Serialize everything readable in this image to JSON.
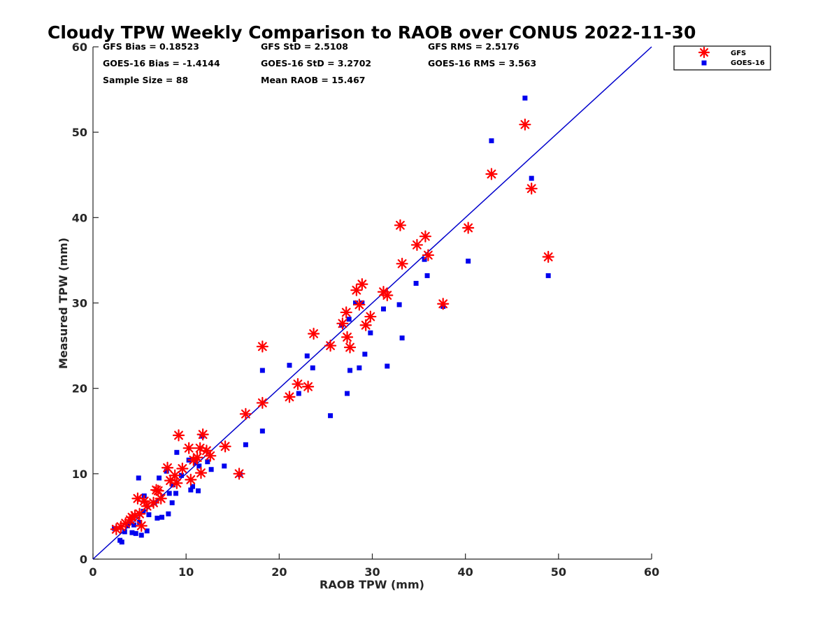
{
  "chart_data": {
    "type": "scatter",
    "title": "Cloudy TPW Weekly Comparison to RAOB over CONUS 2022-11-30",
    "xlabel": "RAOB TPW (mm)",
    "ylabel": "Measured TPW (mm)",
    "xlim": [
      0,
      60
    ],
    "ylim": [
      0,
      60
    ],
    "xticks": [
      "0",
      "10",
      "20",
      "30",
      "40",
      "50",
      "60"
    ],
    "yticks": [
      "0",
      "10",
      "20",
      "30",
      "40",
      "50",
      "60"
    ],
    "grid": false,
    "legend_position": "outside-top-right",
    "stats": {
      "gfs_bias": "GFS Bias = 0.18523",
      "goes_bias": "GOES-16 Bias = -1.4144",
      "sample_size": "Sample Size = 88",
      "gfs_std": "GFS StD = 2.5108",
      "goes_std": "GOES-16 StD = 3.2702",
      "mean_raob": "Mean RAOB = 15.467",
      "gfs_rms": "GFS RMS = 2.5176",
      "goes_rms": "GOES-16 RMS = 3.563"
    },
    "reference_line": {
      "x": [
        0,
        60
      ],
      "y": [
        0,
        60
      ],
      "color": "#0000cc"
    },
    "series": [
      {
        "name": "GFS",
        "marker": "asterisk",
        "color": "#ff0000",
        "points": [
          [
            2.5,
            3.5
          ],
          [
            3.0,
            3.8
          ],
          [
            3.5,
            4.2
          ],
          [
            4.0,
            4.6
          ],
          [
            4.2,
            4.9
          ],
          [
            4.5,
            5.1
          ],
          [
            5.0,
            5.3
          ],
          [
            4.8,
            7.1
          ],
          [
            5.5,
            6.8
          ],
          [
            5.2,
            3.9
          ],
          [
            5.8,
            6.2
          ],
          [
            6.5,
            6.6
          ],
          [
            6.8,
            8.1
          ],
          [
            7.0,
            8.0
          ],
          [
            7.3,
            7.1
          ],
          [
            8.0,
            10.7
          ],
          [
            8.3,
            9.2
          ],
          [
            8.8,
            9.8
          ],
          [
            9.2,
            14.5
          ],
          [
            9.6,
            10.6
          ],
          [
            9.0,
            8.9
          ],
          [
            10.3,
            13.0
          ],
          [
            10.5,
            9.3
          ],
          [
            10.8,
            11.6
          ],
          [
            11.2,
            11.9
          ],
          [
            11.5,
            13.0
          ],
          [
            11.6,
            10.1
          ],
          [
            11.8,
            14.6
          ],
          [
            12.2,
            12.7
          ],
          [
            12.6,
            12.1
          ],
          [
            14.2,
            13.2
          ],
          [
            15.7,
            10.0
          ],
          [
            16.4,
            17.0
          ],
          [
            18.2,
            18.3
          ],
          [
            18.2,
            24.9
          ],
          [
            21.1,
            19.0
          ],
          [
            22.0,
            20.5
          ],
          [
            23.1,
            20.2
          ],
          [
            23.7,
            26.4
          ],
          [
            25.5,
            25.0
          ],
          [
            26.8,
            27.6
          ],
          [
            27.2,
            28.9
          ],
          [
            27.3,
            26.0
          ],
          [
            27.6,
            24.8
          ],
          [
            28.3,
            31.5
          ],
          [
            28.6,
            29.8
          ],
          [
            28.9,
            32.2
          ],
          [
            29.3,
            27.4
          ],
          [
            29.8,
            28.4
          ],
          [
            31.2,
            31.3
          ],
          [
            31.6,
            30.9
          ],
          [
            33.0,
            39.1
          ],
          [
            33.2,
            34.6
          ],
          [
            34.8,
            36.8
          ],
          [
            35.7,
            37.8
          ],
          [
            36.0,
            35.6
          ],
          [
            37.6,
            29.9
          ],
          [
            40.3,
            38.8
          ],
          [
            42.8,
            45.1
          ],
          [
            46.4,
            50.9
          ],
          [
            47.1,
            43.4
          ],
          [
            48.9,
            35.4
          ]
        ]
      },
      {
        "name": "GOES-16",
        "marker": "square",
        "color": "#0000ee",
        "points": [
          [
            2.3,
            3.6
          ],
          [
            2.9,
            2.2
          ],
          [
            3.1,
            2.0
          ],
          [
            3.4,
            3.2
          ],
          [
            3.7,
            3.9
          ],
          [
            4.0,
            4.4
          ],
          [
            4.2,
            3.1
          ],
          [
            4.4,
            4.0
          ],
          [
            4.6,
            3.0
          ],
          [
            4.9,
            9.5
          ],
          [
            5.0,
            4.3
          ],
          [
            5.2,
            2.8
          ],
          [
            5.4,
            5.6
          ],
          [
            5.5,
            7.4
          ],
          [
            5.8,
            3.3
          ],
          [
            6.0,
            5.2
          ],
          [
            6.6,
            6.6
          ],
          [
            6.9,
            4.8
          ],
          [
            7.1,
            9.5
          ],
          [
            7.4,
            4.9
          ],
          [
            7.9,
            10.3
          ],
          [
            8.1,
            5.3
          ],
          [
            8.2,
            7.7
          ],
          [
            8.5,
            6.6
          ],
          [
            8.6,
            8.7
          ],
          [
            8.9,
            7.7
          ],
          [
            9.0,
            12.5
          ],
          [
            9.5,
            9.8
          ],
          [
            10.3,
            11.6
          ],
          [
            10.5,
            8.1
          ],
          [
            10.7,
            8.5
          ],
          [
            11.0,
            11.3
          ],
          [
            11.3,
            8.0
          ],
          [
            11.4,
            10.9
          ],
          [
            11.7,
            14.4
          ],
          [
            12.3,
            11.4
          ],
          [
            12.7,
            10.5
          ],
          [
            14.1,
            10.9
          ],
          [
            15.8,
            9.9
          ],
          [
            16.4,
            13.4
          ],
          [
            18.2,
            15.0
          ],
          [
            18.2,
            22.1
          ],
          [
            21.1,
            22.7
          ],
          [
            22.1,
            19.4
          ],
          [
            23.0,
            23.8
          ],
          [
            23.6,
            22.4
          ],
          [
            25.5,
            16.8
          ],
          [
            26.7,
            27.4
          ],
          [
            27.3,
            19.4
          ],
          [
            27.5,
            28.1
          ],
          [
            27.6,
            22.1
          ],
          [
            28.2,
            30.0
          ],
          [
            28.6,
            22.4
          ],
          [
            28.9,
            30.0
          ],
          [
            29.2,
            24.0
          ],
          [
            29.8,
            26.5
          ],
          [
            31.2,
            29.3
          ],
          [
            31.6,
            22.6
          ],
          [
            32.9,
            29.8
          ],
          [
            33.2,
            25.9
          ],
          [
            34.7,
            32.3
          ],
          [
            35.6,
            35.1
          ],
          [
            35.9,
            33.2
          ],
          [
            37.6,
            29.6
          ],
          [
            40.3,
            34.9
          ],
          [
            42.8,
            49.0
          ],
          [
            46.4,
            54.0
          ],
          [
            47.1,
            44.6
          ],
          [
            48.9,
            33.2
          ]
        ]
      }
    ]
  }
}
